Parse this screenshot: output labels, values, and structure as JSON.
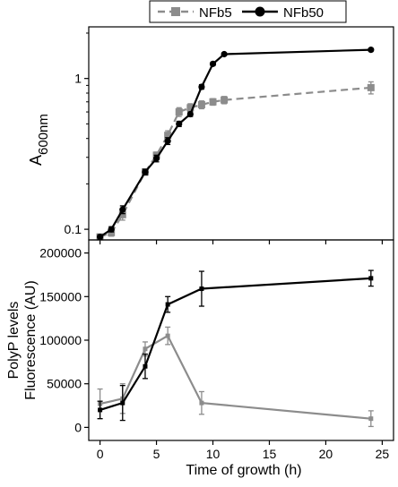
{
  "colors": {
    "NFb5": "#8c8c8c",
    "NFb50": "#000000"
  },
  "legend": {
    "items": [
      "NFb5",
      "NFb50"
    ],
    "placement": "top"
  },
  "chart_data": [
    {
      "type": "line",
      "panel": "top",
      "yscale": "log",
      "ylabel_main": "A",
      "ylabel_sub": "600nm",
      "ylim": [
        0.085,
        2.2
      ],
      "xlim": [
        -1,
        26
      ],
      "yticks": [
        0.1,
        1
      ],
      "ytick_labels": [
        "0.1",
        "1"
      ],
      "series": [
        {
          "name": "NFb5",
          "style": "dashed-square",
          "x": [
            0,
            1,
            2,
            4,
            5,
            6,
            7,
            8,
            9,
            10,
            11,
            24
          ],
          "y": [
            0.089,
            0.095,
            0.125,
            0.24,
            0.31,
            0.42,
            0.6,
            0.64,
            0.67,
            0.7,
            0.72,
            0.87
          ],
          "err": [
            0.003,
            0.005,
            0.01,
            0.012,
            0.015,
            0.03,
            0.04,
            0.04,
            0.04,
            0.035,
            0.04,
            0.08
          ]
        },
        {
          "name": "NFb50",
          "style": "solid-circle",
          "x": [
            0,
            1,
            2,
            4,
            5,
            6,
            7,
            8,
            9,
            10,
            11,
            24
          ],
          "y": [
            0.089,
            0.1,
            0.135,
            0.24,
            0.295,
            0.385,
            0.5,
            0.58,
            0.88,
            1.25,
            1.45,
            1.55
          ],
          "err": [
            0.003,
            0.004,
            0.008,
            0.01,
            0.015,
            0.02,
            0.02,
            0.02,
            0.03,
            0.03,
            0.03,
            0.03
          ]
        }
      ]
    },
    {
      "type": "line",
      "panel": "bottom",
      "ylabel_lines": [
        "PolyP levels",
        "Fluorescence (AU)"
      ],
      "xlabel": "Time of growth (h)",
      "ylim": [
        -15000,
        215000
      ],
      "xlim": [
        -1,
        26
      ],
      "yticks": [
        0,
        50000,
        100000,
        150000,
        200000
      ],
      "ytick_labels": [
        "0",
        "50000",
        "100000",
        "150000",
        "200000"
      ],
      "xticks": [
        0,
        5,
        10,
        15,
        20,
        25
      ],
      "xtick_labels": [
        "0",
        "5",
        "10",
        "15",
        "20",
        "25"
      ],
      "series": [
        {
          "name": "NFb5",
          "x": [
            0,
            2,
            4,
            6,
            9,
            24
          ],
          "y": [
            27000,
            33000,
            90000,
            105000,
            28000,
            10000
          ],
          "err": [
            17000,
            17000,
            8000,
            10000,
            13000,
            9000
          ]
        },
        {
          "name": "NFb50",
          "x": [
            0,
            2,
            4,
            6,
            9,
            24
          ],
          "y": [
            20000,
            28000,
            70000,
            141000,
            159000,
            171000
          ],
          "err": [
            10000,
            20000,
            14000,
            9000,
            20000,
            9000
          ]
        }
      ]
    }
  ]
}
